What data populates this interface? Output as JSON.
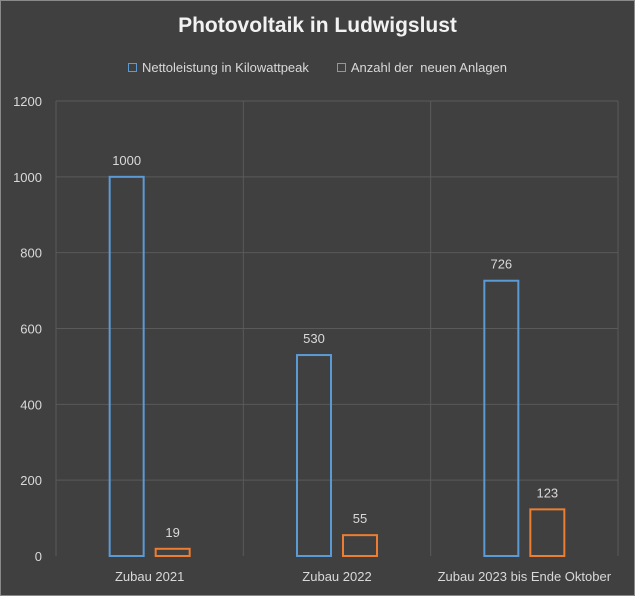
{
  "chart_data": {
    "type": "bar",
    "title": "Photovoltaik in Ludwigslust",
    "categories": [
      "Zubau 2021",
      "Zubau 2022",
      "Zubau 2023 bis Ende Oktober"
    ],
    "series": [
      {
        "name": "Nettoleistung in Kilowattpeak",
        "values": [
          1000,
          530,
          726
        ],
        "color": "#5b9bd5"
      },
      {
        "name": "Anzahl der  neuen Anlagen",
        "values": [
          19,
          55,
          123
        ],
        "color": "#ed7d31"
      }
    ],
    "ylim": [
      0,
      1200
    ],
    "yticks": [
      0,
      200,
      400,
      600,
      800,
      1000,
      1200
    ],
    "grid": true,
    "legend": "top"
  }
}
